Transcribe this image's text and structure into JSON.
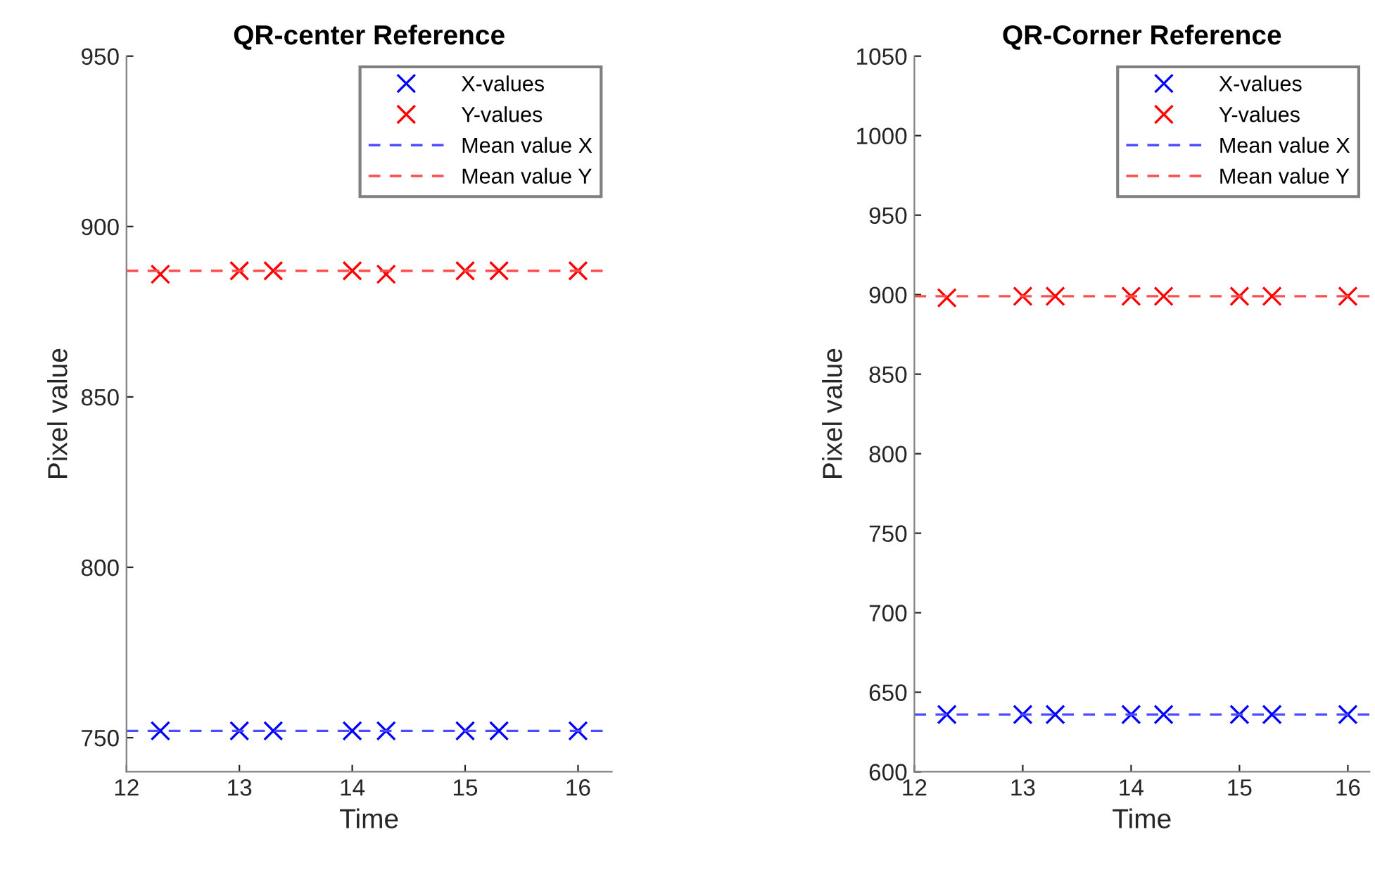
{
  "chart_data": [
    {
      "type": "scatter",
      "title": "QR-center Reference",
      "xlabel": "Time",
      "ylabel": "Pixel value",
      "xlim": [
        12,
        16.3
      ],
      "xticks": [
        12,
        13,
        14,
        15,
        16
      ],
      "ylim": [
        740,
        950
      ],
      "yticks": [
        750,
        800,
        850,
        900,
        950
      ],
      "x": [
        12.3,
        13,
        13.3,
        14,
        14.3,
        15,
        15.3,
        16
      ],
      "marker": "cross",
      "grid": false,
      "legend": "top right",
      "series": [
        {
          "name": "X-values",
          "color": "#0000ff",
          "values": [
            752,
            752,
            752,
            752,
            752,
            752,
            752,
            752
          ]
        },
        {
          "name": "Y-values",
          "color": "#ff0000",
          "values": [
            886,
            887,
            887,
            887,
            886,
            887,
            887,
            887
          ]
        },
        {
          "name": "Mean value X",
          "type": "line",
          "marker": "none",
          "line_style": "dashed",
          "color": "#4d4dff",
          "x": [
            12,
            16.3
          ],
          "values": [
            752,
            752
          ]
        },
        {
          "name": "Mean value Y",
          "type": "line",
          "marker": "none",
          "line_style": "dashed",
          "color": "#ff4d4d",
          "x": [
            12,
            16.3
          ],
          "values": [
            887,
            887
          ]
        }
      ]
    },
    {
      "type": "scatter",
      "title": "QR-Corner Reference",
      "xlabel": "Time",
      "ylabel": "Pixel value",
      "xlim": [
        12,
        16.2
      ],
      "xticks": [
        12,
        13,
        14,
        15,
        16
      ],
      "ylim": [
        600,
        1050
      ],
      "yticks": [
        600,
        650,
        700,
        750,
        800,
        850,
        900,
        950,
        1000,
        1050
      ],
      "x": [
        12.3,
        13,
        13.3,
        14,
        14.3,
        15,
        15.3,
        16
      ],
      "marker": "cross",
      "grid": false,
      "legend": "top right",
      "series": [
        {
          "name": "X-values",
          "color": "#0000ff",
          "values": [
            636,
            636,
            636,
            636,
            636,
            636,
            636,
            636
          ]
        },
        {
          "name": "Y-values",
          "color": "#ff0000",
          "values": [
            898,
            899,
            899,
            899,
            899,
            899,
            899,
            899
          ]
        },
        {
          "name": "Mean value X",
          "type": "line",
          "marker": "none",
          "line_style": "dashed",
          "color": "#4d4dff",
          "x": [
            12,
            16.2
          ],
          "values": [
            636,
            636
          ]
        },
        {
          "name": "Mean value Y",
          "type": "line",
          "marker": "none",
          "line_style": "dashed",
          "color": "#ff4d4d",
          "x": [
            12,
            16.2
          ],
          "values": [
            899,
            899
          ]
        }
      ]
    }
  ]
}
